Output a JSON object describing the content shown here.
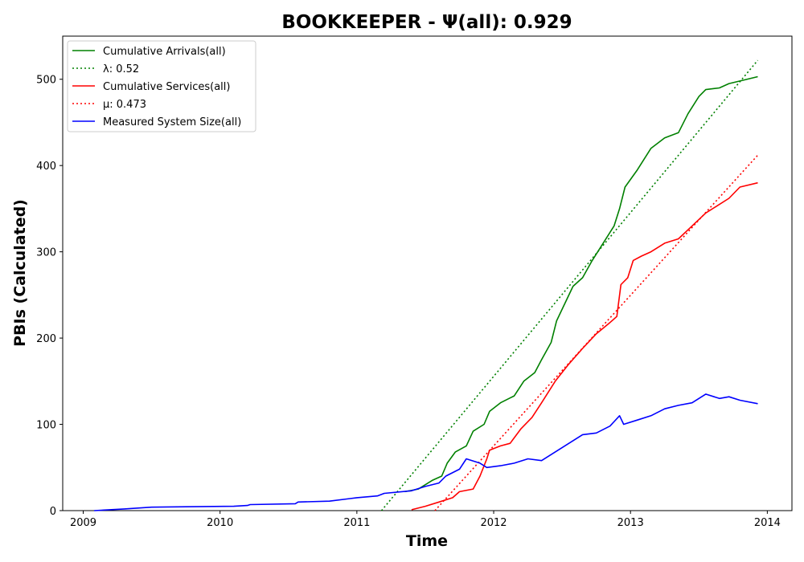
{
  "chart_data": {
    "type": "line",
    "title": "BOOKKEEPER -  Ψ(all): 0.929",
    "xlabel": "Time",
    "ylabel": "PBIs (Calculated)",
    "xlim": [
      2008.85,
      2014.18
    ],
    "ylim": [
      0,
      550
    ],
    "x_ticks": [
      "2009",
      "2010",
      "2011",
      "2012",
      "2013",
      "2014"
    ],
    "y_ticks": [
      "0",
      "100",
      "200",
      "300",
      "400",
      "500"
    ],
    "legend_position": "upper-left",
    "grid": false,
    "series": [
      {
        "name": "Cumulative Arrivals(all)",
        "color": "#008000",
        "style": "solid",
        "points": [
          [
            2011.35,
            22
          ],
          [
            2011.45,
            25
          ],
          [
            2011.55,
            35
          ],
          [
            2011.62,
            40
          ],
          [
            2011.66,
            55
          ],
          [
            2011.72,
            68
          ],
          [
            2011.8,
            75
          ],
          [
            2011.85,
            92
          ],
          [
            2011.93,
            100
          ],
          [
            2011.97,
            115
          ],
          [
            2012.05,
            125
          ],
          [
            2012.15,
            133
          ],
          [
            2012.22,
            150
          ],
          [
            2012.3,
            160
          ],
          [
            2012.35,
            175
          ],
          [
            2012.42,
            195
          ],
          [
            2012.46,
            220
          ],
          [
            2012.52,
            240
          ],
          [
            2012.58,
            260
          ],
          [
            2012.65,
            270
          ],
          [
            2012.72,
            290
          ],
          [
            2012.8,
            310
          ],
          [
            2012.88,
            330
          ],
          [
            2012.92,
            350
          ],
          [
            2012.96,
            375
          ],
          [
            2013.05,
            395
          ],
          [
            2013.15,
            420
          ],
          [
            2013.25,
            432
          ],
          [
            2013.35,
            438
          ],
          [
            2013.42,
            460
          ],
          [
            2013.5,
            480
          ],
          [
            2013.55,
            488
          ],
          [
            2013.65,
            490
          ],
          [
            2013.72,
            495
          ],
          [
            2013.8,
            498
          ],
          [
            2013.93,
            503
          ]
        ]
      },
      {
        "name": "λ: 0.52",
        "color": "#008000",
        "style": "dotted",
        "points": [
          [
            2011.18,
            0
          ],
          [
            2013.93,
            522
          ]
        ]
      },
      {
        "name": "Cumulative Services(all)",
        "color": "#ff0000",
        "style": "solid",
        "points": [
          [
            2011.4,
            1
          ],
          [
            2011.5,
            5
          ],
          [
            2011.6,
            10
          ],
          [
            2011.7,
            15
          ],
          [
            2011.75,
            22
          ],
          [
            2011.85,
            25
          ],
          [
            2011.9,
            40
          ],
          [
            2011.95,
            60
          ],
          [
            2011.97,
            70
          ],
          [
            2012.05,
            75
          ],
          [
            2012.12,
            78
          ],
          [
            2012.2,
            95
          ],
          [
            2012.28,
            108
          ],
          [
            2012.35,
            125
          ],
          [
            2012.45,
            150
          ],
          [
            2012.55,
            170
          ],
          [
            2012.65,
            188
          ],
          [
            2012.75,
            205
          ],
          [
            2012.85,
            218
          ],
          [
            2012.9,
            225
          ],
          [
            2012.93,
            262
          ],
          [
            2012.98,
            270
          ],
          [
            2013.02,
            290
          ],
          [
            2013.08,
            295
          ],
          [
            2013.15,
            300
          ],
          [
            2013.25,
            310
          ],
          [
            2013.35,
            315
          ],
          [
            2013.45,
            330
          ],
          [
            2013.55,
            345
          ],
          [
            2013.62,
            352
          ],
          [
            2013.72,
            362
          ],
          [
            2013.8,
            375
          ],
          [
            2013.93,
            380
          ]
        ]
      },
      {
        "name": "μ: 0.473",
        "color": "#ff0000",
        "style": "dotted",
        "points": [
          [
            2011.57,
            0
          ],
          [
            2013.93,
            412
          ]
        ]
      },
      {
        "name": "Measured System Size(all)",
        "color": "#0000ff",
        "style": "solid",
        "points": [
          [
            2009.08,
            0
          ],
          [
            2009.3,
            2
          ],
          [
            2009.5,
            4
          ],
          [
            2009.75,
            4.5
          ],
          [
            2010.1,
            5
          ],
          [
            2010.2,
            6
          ],
          [
            2010.22,
            7
          ],
          [
            2010.55,
            8
          ],
          [
            2010.57,
            10
          ],
          [
            2010.8,
            11
          ],
          [
            2010.95,
            14
          ],
          [
            2011.0,
            15
          ],
          [
            2011.15,
            17
          ],
          [
            2011.2,
            20
          ],
          [
            2011.4,
            23
          ],
          [
            2011.5,
            28
          ],
          [
            2011.6,
            32
          ],
          [
            2011.65,
            40
          ],
          [
            2011.75,
            48
          ],
          [
            2011.8,
            60
          ],
          [
            2011.9,
            55
          ],
          [
            2011.95,
            50
          ],
          [
            2012.05,
            52
          ],
          [
            2012.15,
            55
          ],
          [
            2012.25,
            60
          ],
          [
            2012.35,
            58
          ],
          [
            2012.45,
            68
          ],
          [
            2012.55,
            78
          ],
          [
            2012.65,
            88
          ],
          [
            2012.75,
            90
          ],
          [
            2012.85,
            98
          ],
          [
            2012.92,
            110
          ],
          [
            2012.95,
            100
          ],
          [
            2013.05,
            105
          ],
          [
            2013.15,
            110
          ],
          [
            2013.25,
            118
          ],
          [
            2013.35,
            122
          ],
          [
            2013.45,
            125
          ],
          [
            2013.55,
            135
          ],
          [
            2013.65,
            130
          ],
          [
            2013.72,
            132
          ],
          [
            2013.8,
            128
          ],
          [
            2013.93,
            124
          ]
        ]
      }
    ]
  }
}
